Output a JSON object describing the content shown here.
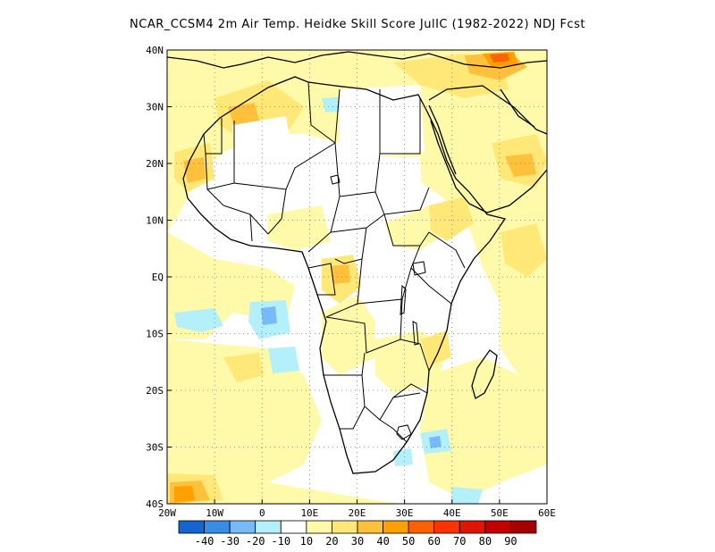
{
  "title": "NCAR_CCSM4  2m Air Temp. Heidke Skill Score JulIC (1982-2022) NDJ Fcst",
  "map": {
    "lon_range": [
      -20,
      60
    ],
    "lat_range": [
      -40,
      40
    ],
    "x_ticks": [
      {
        "value": -20,
        "label": "20W"
      },
      {
        "value": -10,
        "label": "10W"
      },
      {
        "value": 0,
        "label": "0"
      },
      {
        "value": 10,
        "label": "10E"
      },
      {
        "value": 20,
        "label": "20E"
      },
      {
        "value": 30,
        "label": "30E"
      },
      {
        "value": 40,
        "label": "40E"
      },
      {
        "value": 50,
        "label": "50E"
      },
      {
        "value": 60,
        "label": "60E"
      }
    ],
    "y_ticks": [
      {
        "value": 40,
        "label": "40N"
      },
      {
        "value": 30,
        "label": "30N"
      },
      {
        "value": 20,
        "label": "20N"
      },
      {
        "value": 10,
        "label": "10N"
      },
      {
        "value": 0,
        "label": "EQ"
      },
      {
        "value": -10,
        "label": "10S"
      },
      {
        "value": -20,
        "label": "20S"
      },
      {
        "value": -30,
        "label": "30S"
      },
      {
        "value": -40,
        "label": "40S"
      }
    ],
    "grid": "dotted"
  },
  "colorbar": {
    "bins": [
      {
        "color": "#1464d2"
      },
      {
        "color": "#3a8ce6"
      },
      {
        "color": "#78b9fa"
      },
      {
        "color": "#b4f0fa"
      },
      {
        "color": "#ffffff"
      },
      {
        "color": "#fffaaa"
      },
      {
        "color": "#ffe878"
      },
      {
        "color": "#ffc03c"
      },
      {
        "color": "#ffa000"
      },
      {
        "color": "#ff6000"
      },
      {
        "color": "#ff3200"
      },
      {
        "color": "#e11400"
      },
      {
        "color": "#c00000"
      },
      {
        "color": "#a50000"
      }
    ],
    "labels": [
      "-40",
      "-30",
      "-20",
      "-10",
      "10",
      "20",
      "30",
      "40",
      "50",
      "60",
      "70",
      "80",
      "90"
    ]
  },
  "colors": {
    "light_yellow": "#fffaaa",
    "yellow": "#ffe878",
    "orange": "#ffc03c",
    "dark_orange": "#ffa000",
    "red_orange": "#ff6000",
    "light_blue": "#b4f0fa",
    "blue": "#78b9fa"
  }
}
